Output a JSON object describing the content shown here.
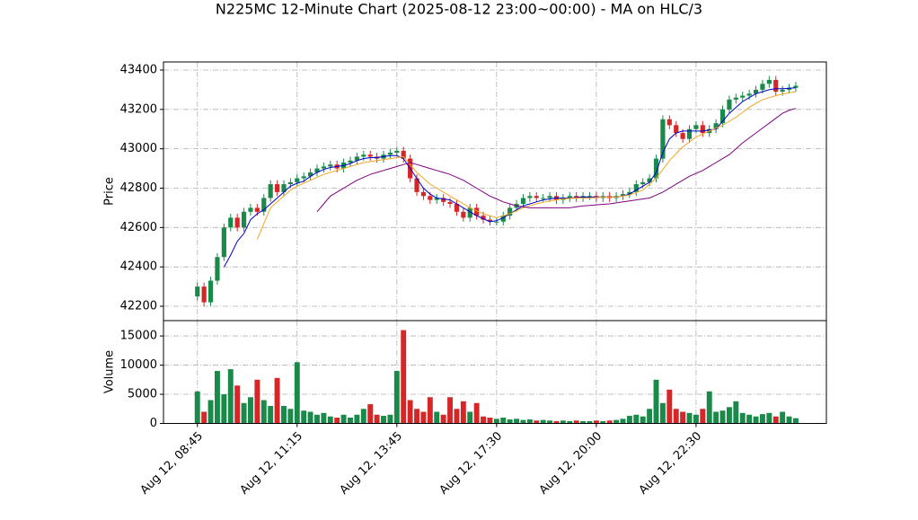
{
  "chart_data": {
    "type": "candlestick",
    "title": "N225MC 12-Minute Chart (2025-08-12 23:00~00:00) - MA on HLC/3",
    "ylabel": "Price",
    "grid": true,
    "up_color": "#1a8a4a",
    "down_color": "#d62728",
    "xlim": [
      -5.1,
      94.6
    ],
    "xticks": [
      {
        "value": 0,
        "label": "Aug 12, 08:45"
      },
      {
        "value": 15,
        "label": "Aug 12, 11:15"
      },
      {
        "value": 30,
        "label": "Aug 12, 13:45"
      },
      {
        "value": 45,
        "label": "Aug 12, 17:30"
      },
      {
        "value": 60,
        "label": "Aug 12, 20:00"
      },
      {
        "value": 75,
        "label": "Aug 12, 22:30"
      }
    ],
    "ylim": [
      42127,
      43441
    ],
    "yticks": [
      42200,
      42400,
      42600,
      42800,
      43000,
      43200,
      43400
    ],
    "open": [
      42250,
      42300,
      42220,
      42330,
      42450,
      42600,
      42650,
      42600,
      42680,
      42700,
      42680,
      42750,
      42820,
      42780,
      42820,
      42830,
      42850,
      42860,
      42880,
      42900,
      42910,
      42920,
      42900,
      42930,
      42940,
      42960,
      42970,
      42960,
      42950,
      42970,
      42980,
      42990,
      42950,
      42850,
      42780,
      42760,
      42740,
      42750,
      42730,
      42720,
      42680,
      42650,
      42700,
      42660,
      42640,
      42630,
      42630,
      42660,
      42700,
      42720,
      42750,
      42760,
      42750,
      42750,
      42760,
      42740,
      42750,
      42760,
      42750,
      42760,
      42760,
      42750,
      42760,
      42750,
      42760,
      42770,
      42780,
      42820,
      42830,
      42850,
      42950,
      43150,
      43120,
      43080,
      43050,
      43100,
      43120,
      43080,
      43100,
      43130,
      43200,
      43250,
      43260,
      43270,
      43280,
      43300,
      43330,
      43350,
      43290,
      43300,
      43310
    ],
    "high": [
      42320,
      42320,
      42350,
      42470,
      42620,
      42670,
      42670,
      42700,
      42720,
      42720,
      42770,
      42840,
      42840,
      42840,
      42850,
      42870,
      42880,
      42900,
      42920,
      42930,
      42940,
      42940,
      42950,
      42960,
      42980,
      42990,
      42990,
      42980,
      42990,
      43000,
      43010,
      43010,
      42970,
      42870,
      42800,
      42780,
      42770,
      42770,
      42750,
      42740,
      42700,
      42720,
      42720,
      42680,
      42660,
      42650,
      42680,
      42720,
      42740,
      42770,
      42780,
      42780,
      42770,
      42780,
      42780,
      42770,
      42780,
      42780,
      42780,
      42780,
      42780,
      42780,
      42780,
      42780,
      42790,
      42800,
      42840,
      42850,
      42870,
      42970,
      43170,
      43170,
      43140,
      43100,
      43120,
      43140,
      43140,
      43120,
      43150,
      43220,
      43270,
      43280,
      43290,
      43300,
      43320,
      43350,
      43370,
      43370,
      43320,
      43330,
      43340
    ],
    "low": [
      42230,
      42200,
      42200,
      42310,
      42430,
      42580,
      42580,
      42580,
      42660,
      42660,
      42660,
      42730,
      42760,
      42760,
      42800,
      42810,
      42830,
      42840,
      42860,
      42880,
      42890,
      42880,
      42880,
      42910,
      42920,
      42940,
      42940,
      42930,
      42930,
      42950,
      42960,
      42930,
      42830,
      42760,
      42740,
      42720,
      42720,
      42710,
      42700,
      42660,
      42630,
      42630,
      42640,
      42620,
      42610,
      42610,
      42610,
      42640,
      42680,
      42700,
      42730,
      42730,
      42730,
      42730,
      42720,
      42720,
      42730,
      42730,
      42730,
      42740,
      42730,
      42730,
      42730,
      42730,
      42740,
      42750,
      42760,
      42800,
      42810,
      42830,
      42930,
      43100,
      43060,
      43030,
      43030,
      43080,
      43060,
      43060,
      43080,
      43110,
      43180,
      43230,
      43240,
      43250,
      43260,
      43280,
      43310,
      43270,
      43270,
      43280,
      43290
    ],
    "close": [
      42300,
      42220,
      42330,
      42450,
      42600,
      42650,
      42600,
      42680,
      42700,
      42680,
      42750,
      42820,
      42780,
      42820,
      42830,
      42850,
      42860,
      42880,
      42900,
      42910,
      42920,
      42900,
      42930,
      42940,
      42960,
      42970,
      42960,
      42950,
      42970,
      42980,
      42990,
      42950,
      42850,
      42780,
      42760,
      42740,
      42750,
      42730,
      42720,
      42680,
      42650,
      42700,
      42660,
      42640,
      42630,
      42630,
      42660,
      42700,
      42720,
      42750,
      42760,
      42750,
      42750,
      42760,
      42740,
      42750,
      42760,
      42750,
      42760,
      42760,
      42750,
      42760,
      42750,
      42760,
      42770,
      42780,
      42820,
      42830,
      42850,
      42950,
      43150,
      43120,
      43080,
      43050,
      43100,
      43120,
      43080,
      43100,
      43130,
      43200,
      43250,
      43260,
      43270,
      43280,
      43300,
      43330,
      43350,
      43290,
      43300,
      43310,
      43320
    ],
    "series": [
      {
        "color": "#0000cc",
        "values": [
          null,
          null,
          null,
          null,
          42400,
          42460,
          42530,
          42570,
          42640,
          42670,
          42690,
          42720,
          42750,
          42780,
          42810,
          42825,
          42835,
          42860,
          42880,
          42895,
          42905,
          42910,
          42915,
          42925,
          42940,
          42950,
          42955,
          42955,
          42960,
          42965,
          42965,
          42950,
          42900,
          42850,
          42800,
          42770,
          42750,
          42745,
          42740,
          42720,
          42700,
          42680,
          42660,
          42645,
          42630,
          42635,
          42650,
          42670,
          42690,
          42710,
          42720,
          42730,
          42740,
          42745,
          42750,
          42750,
          42750,
          42752,
          42755,
          42755,
          42755,
          42755,
          42755,
          42755,
          42760,
          42770,
          42790,
          42810,
          42830,
          42880,
          42980,
          43050,
          43080,
          43090,
          43090,
          43090,
          43090,
          43095,
          43100,
          43140,
          43180,
          43210,
          43240,
          43260,
          43280,
          43290,
          43300,
          43305,
          43305,
          43308,
          43310
        ]
      },
      {
        "color": "#f5a623",
        "values": [
          null,
          null,
          null,
          null,
          null,
          null,
          null,
          null,
          null,
          42540,
          42620,
          42700,
          42730,
          42760,
          42790,
          42810,
          42825,
          42840,
          42855,
          42870,
          42880,
          42890,
          42900,
          42910,
          42920,
          42930,
          42935,
          42940,
          42945,
          42950,
          42955,
          42960,
          42920,
          42880,
          42850,
          42820,
          42800,
          42780,
          42760,
          42740,
          42720,
          42700,
          42685,
          42670,
          42660,
          42650,
          42660,
          42670,
          42685,
          42700,
          42710,
          42720,
          42728,
          42735,
          42740,
          42745,
          42748,
          42750,
          42750,
          42750,
          42752,
          42755,
          42755,
          42755,
          42760,
          42765,
          42778,
          42790,
          42820,
          42850,
          42895,
          42940,
          42975,
          43010,
          43035,
          43060,
          43075,
          43090,
          43105,
          43120,
          43140,
          43160,
          43185,
          43210,
          43230,
          43250,
          43260,
          43270,
          43278,
          43285,
          43290
        ]
      },
      {
        "color": "#800080",
        "values": [
          null,
          null,
          null,
          null,
          null,
          null,
          null,
          null,
          null,
          null,
          null,
          null,
          null,
          null,
          null,
          null,
          null,
          null,
          42680,
          42720,
          42760,
          42780,
          42800,
          42820,
          42840,
          42855,
          42870,
          42880,
          42890,
          42900,
          42910,
          42920,
          42930,
          42920,
          42910,
          42900,
          42890,
          42880,
          42870,
          42855,
          42840,
          42820,
          42800,
          42780,
          42760,
          42745,
          42730,
          42720,
          42710,
          42705,
          42700,
          42700,
          42700,
          42700,
          42700,
          42700,
          42700,
          42705,
          42710,
          42712,
          42715,
          42718,
          42720,
          42725,
          42730,
          42735,
          42740,
          42745,
          42750,
          42765,
          42780,
          42800,
          42820,
          42840,
          42860,
          42875,
          42890,
          42910,
          42930,
          42950,
          42970,
          43000,
          43030,
          43055,
          43080,
          43105,
          43130,
          43155,
          43180,
          43195,
          43205
        ]
      }
    ],
    "volume": {
      "ylabel": "Volume",
      "ylim": [
        0,
        17630
      ],
      "yticks": [
        0,
        5000,
        10000,
        15000
      ],
      "values": [
        5500,
        2000,
        4000,
        9000,
        5000,
        9300,
        6500,
        3500,
        4500,
        7500,
        4000,
        3000,
        7800,
        3000,
        2500,
        10500,
        2200,
        2000,
        1500,
        1800,
        1200,
        1000,
        1500,
        1000,
        1500,
        2500,
        3300,
        1500,
        1300,
        1500,
        9000,
        16000,
        4000,
        2500,
        2000,
        4500,
        2000,
        1500,
        4500,
        2500,
        3800,
        2000,
        3500,
        1200,
        1000,
        800,
        1000,
        700,
        800,
        600,
        700,
        500,
        600,
        500,
        400,
        500,
        400,
        500,
        400,
        400,
        500,
        400,
        500,
        600,
        800,
        1300,
        1500,
        1200,
        2500,
        7500,
        3500,
        5800,
        2500,
        2000,
        1800,
        1500,
        2500,
        5500,
        2000,
        2200,
        2800,
        3800,
        1800,
        1500,
        1200,
        1600,
        1800,
        1200,
        2000,
        1200,
        900
      ]
    }
  }
}
